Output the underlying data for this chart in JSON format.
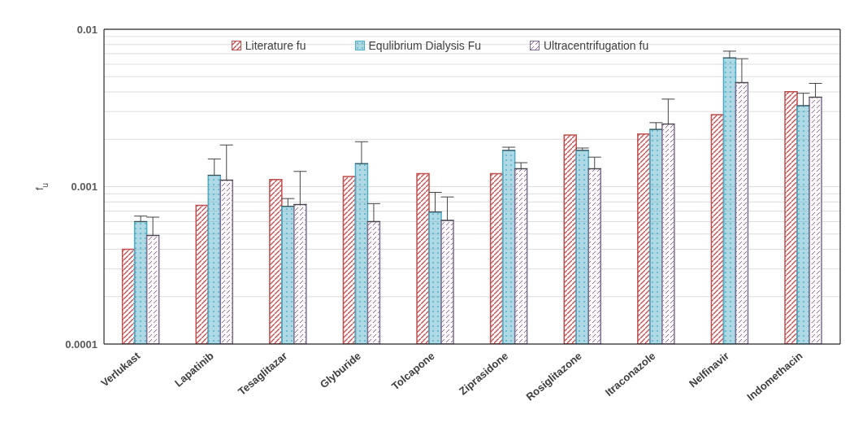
{
  "chart_data": {
    "type": "bar",
    "ylabel": "f$_{u}$",
    "categories": [
      "Verlukast",
      "Lapatinib",
      "Tesaglitazar",
      "Glyburide",
      "Tolcapone",
      "Ziprasidone",
      "Rosiglitazone",
      "Itraconazole",
      "Nelfinavir",
      "Indomethacin"
    ],
    "series": [
      {
        "name": "Literature fu",
        "color": "#c0504d",
        "values": [
          0.0004,
          0.00076,
          0.00111,
          0.00116,
          0.00121,
          0.00121,
          0.00213,
          0.00216,
          0.00287,
          0.00401
        ]
      },
      {
        "name": "Equlibrium Dialysis Fu",
        "color": "#4bacc6",
        "values": [
          0.0006,
          0.00118,
          0.00075,
          0.0014,
          0.00069,
          0.0017,
          0.0017,
          0.00231,
          0.00658,
          0.00327
        ],
        "errors": [
          [
            0.0006,
            0.00065
          ],
          [
            0.00118,
            0.0015
          ],
          [
            0.00075,
            0.00084
          ],
          [
            0.0014,
            0.00193
          ],
          [
            0.00069,
            0.00092
          ],
          [
            0.0017,
            0.00178
          ],
          [
            0.0017,
            0.00176
          ],
          [
            0.00231,
            0.00255
          ],
          [
            0.00658,
            0.00726
          ],
          [
            0.00327,
            0.00392
          ]
        ]
      },
      {
        "name": "Ultracentrifugation fu",
        "color": "#7f6f8f",
        "values": [
          0.00049,
          0.0011,
          0.00077,
          0.0006,
          0.00061,
          0.0013,
          0.0013,
          0.0025,
          0.00458,
          0.0037
        ],
        "errors": [
          [
            0.00049,
            0.00064
          ],
          [
            0.0011,
            0.00184
          ],
          [
            0.00077,
            0.00125
          ],
          [
            0.0006,
            0.00078
          ],
          [
            0.00061,
            0.00086
          ],
          [
            0.0013,
            0.00142
          ],
          [
            0.0013,
            0.00154
          ],
          [
            0.0025,
            0.0036
          ],
          [
            0.00458,
            0.0065
          ],
          [
            0.0037,
            0.00453
          ]
        ]
      }
    ],
    "log": "y",
    "ylim": [
      0.0001,
      0.01
    ],
    "yticks": [
      0.0001,
      {
        "value": 0.0002,
        "label": null
      },
      {
        "value": 0.0003,
        "label": null
      },
      {
        "value": 0.0004,
        "label": null
      },
      {
        "value": 0.0005,
        "label": null
      },
      {
        "value": 0.0006,
        "label": null
      },
      {
        "value": 0.0007,
        "label": null
      },
      {
        "value": 0.0008,
        "label": null
      },
      {
        "value": 0.0009,
        "label": null
      },
      0.001,
      {
        "value": 0.002,
        "label": null
      },
      {
        "value": 0.003,
        "label": null
      },
      {
        "value": 0.004,
        "label": null
      },
      {
        "value": 0.005,
        "label": null
      },
      {
        "value": 0.006,
        "label": null
      },
      {
        "value": 0.007,
        "label": null
      },
      {
        "value": 0.008,
        "label": null
      },
      {
        "value": 0.009,
        "label": null
      },
      0.01
    ],
    "grid": "y",
    "legend": "top"
  }
}
